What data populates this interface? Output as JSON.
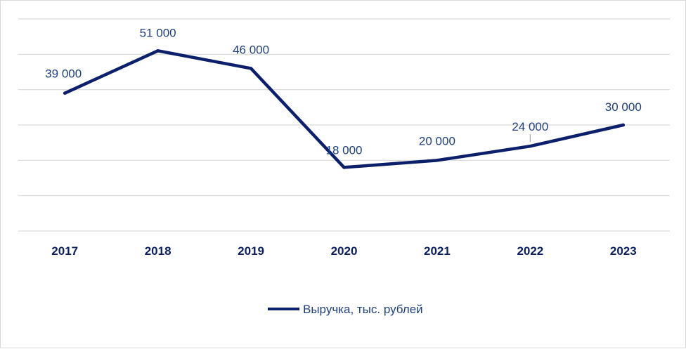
{
  "chart_data": {
    "type": "line",
    "categories": [
      "2017",
      "2018",
      "2019",
      "2020",
      "2021",
      "2022",
      "2023"
    ],
    "series": [
      {
        "name": "Выручка, тыс. рублей",
        "values": [
          39000,
          51000,
          46000,
          18000,
          20000,
          24000,
          30000
        ],
        "labels": [
          "39 000",
          "51 000",
          "46 000",
          "18 000",
          "20 000",
          "24 000",
          "30 000"
        ],
        "color": "#0b1f6b"
      }
    ],
    "ylim": [
      0,
      60000
    ],
    "ytick_step": 10000,
    "ytick_labels_shown": false,
    "grid": true,
    "legend_position": "bottom"
  }
}
